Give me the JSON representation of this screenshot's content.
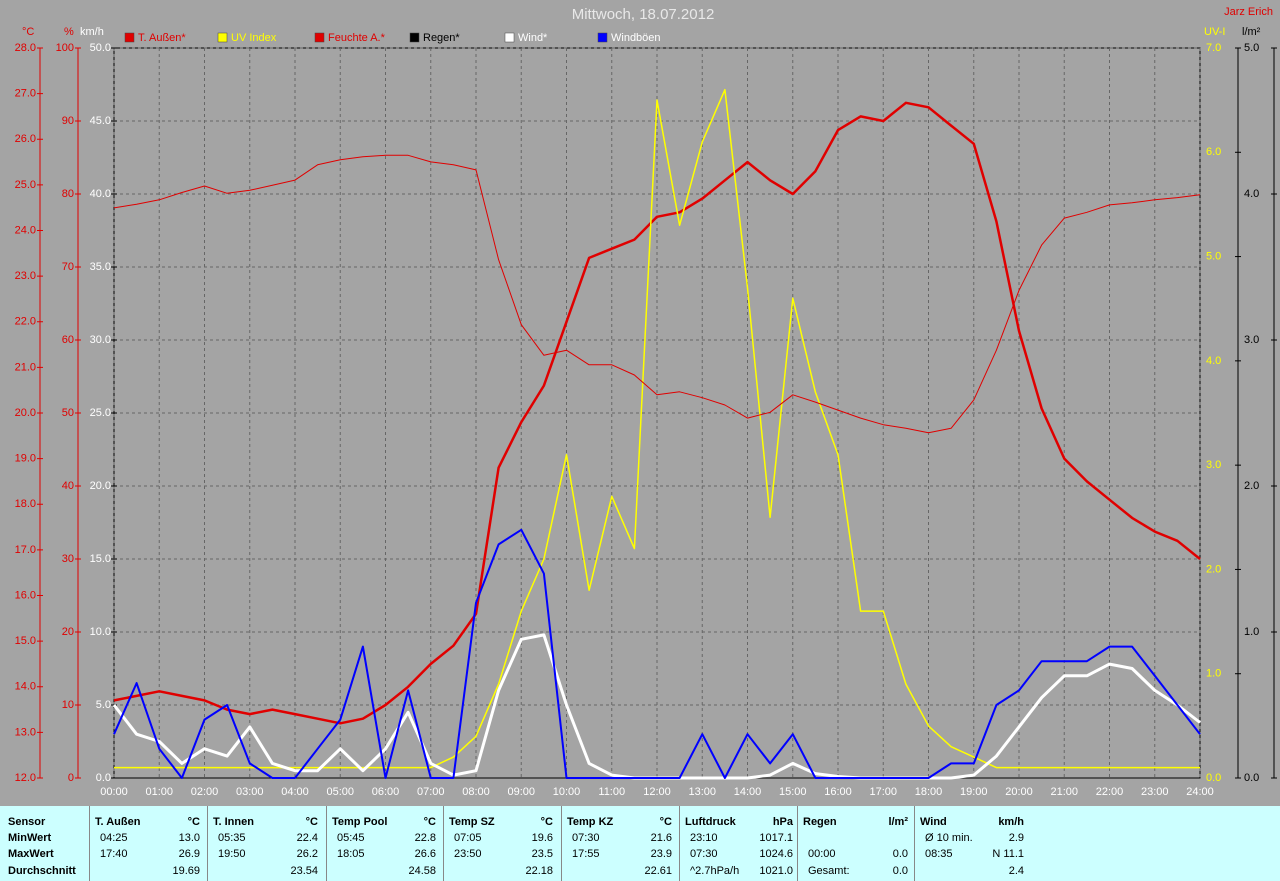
{
  "chart_data": {
    "type": "line",
    "title": "Mittwoch, 18.07.2012",
    "author": "Jarz Erich",
    "xlim": [
      0,
      24
    ],
    "xticks": [
      {
        "value": 0,
        "label": "00:00"
      },
      {
        "value": 1,
        "label": "01:00"
      },
      {
        "value": 2,
        "label": "02:00"
      },
      {
        "value": 3,
        "label": "03:00"
      },
      {
        "value": 4,
        "label": "04:00"
      },
      {
        "value": 5,
        "label": "05:00"
      },
      {
        "value": 6,
        "label": "06:00"
      },
      {
        "value": 7,
        "label": "07:00"
      },
      {
        "value": 8,
        "label": "08:00"
      },
      {
        "value": 9,
        "label": "09:00"
      },
      {
        "value": 10,
        "label": "10:00"
      },
      {
        "value": 11,
        "label": "11:00"
      },
      {
        "value": 12,
        "label": "12:00"
      },
      {
        "value": 13,
        "label": "13:00"
      },
      {
        "value": 14,
        "label": "14:00"
      },
      {
        "value": 15,
        "label": "15:00"
      },
      {
        "value": 16,
        "label": "16:00"
      },
      {
        "value": 17,
        "label": "17:00"
      },
      {
        "value": 18,
        "label": "18:00"
      },
      {
        "value": 19,
        "label": "19:00"
      },
      {
        "value": 20,
        "label": "20:00"
      },
      {
        "value": 21,
        "label": "21:00"
      },
      {
        "value": 22,
        "label": "22:00"
      },
      {
        "value": 23,
        "label": "23:00"
      },
      {
        "value": 24,
        "label": "24:00"
      }
    ],
    "y_axes": [
      {
        "unit": "°C",
        "color": "#e00000",
        "lim": [
          12,
          28
        ],
        "ticks": [
          {
            "value": 12,
            "label": "12.0"
          },
          {
            "value": 13,
            "label": "13.0"
          },
          {
            "value": 14,
            "label": "14.0"
          },
          {
            "value": 15,
            "label": "15.0"
          },
          {
            "value": 16,
            "label": "16.0"
          },
          {
            "value": 17,
            "label": "17.0"
          },
          {
            "value": 18,
            "label": "18.0"
          },
          {
            "value": 19,
            "label": "19.0"
          },
          {
            "value": 20,
            "label": "20.0"
          },
          {
            "value": 21,
            "label": "21.0"
          },
          {
            "value": 22,
            "label": "22.0"
          },
          {
            "value": 23,
            "label": "23.0"
          },
          {
            "value": 24,
            "label": "24.0"
          },
          {
            "value": 25,
            "label": "25.0"
          },
          {
            "value": 26,
            "label": "26.0"
          },
          {
            "value": 27,
            "label": "27.0"
          },
          {
            "value": 28,
            "label": "28.0"
          }
        ]
      },
      {
        "unit": "%",
        "color": "#e00000",
        "lim": [
          0,
          100
        ],
        "ticks": [
          0,
          10,
          20,
          30,
          40,
          50,
          60,
          70,
          80,
          90,
          100
        ]
      },
      {
        "unit": "km/h",
        "color": "#ffffff",
        "lim": [
          0,
          50
        ],
        "grid": true,
        "ticks": [
          {
            "value": 0,
            "label": "0.0"
          },
          {
            "value": 5,
            "label": "5.0"
          },
          {
            "value": 10,
            "label": "10.0"
          },
          {
            "value": 15,
            "label": "15.0"
          },
          {
            "value": 20,
            "label": "20.0"
          },
          {
            "value": 25,
            "label": "25.0"
          },
          {
            "value": 30,
            "label": "30.0"
          },
          {
            "value": 35,
            "label": "35.0"
          },
          {
            "value": 40,
            "label": "40.0"
          },
          {
            "value": 45,
            "label": "45.0"
          },
          {
            "value": 50,
            "label": "50.0"
          }
        ]
      },
      {
        "unit": "UV-I",
        "color": "#ffff00",
        "lim": [
          0,
          7
        ],
        "ticks": [
          {
            "value": 0,
            "label": "0.0"
          },
          {
            "value": 1,
            "label": "1.0"
          },
          {
            "value": 2,
            "label": "2.0"
          },
          {
            "value": 3,
            "label": "3.0"
          },
          {
            "value": 4,
            "label": "4.0"
          },
          {
            "value": 5,
            "label": "5.0"
          },
          {
            "value": 6,
            "label": "6.0"
          },
          {
            "value": 7,
            "label": "7.0"
          }
        ]
      },
      {
        "unit": "l/m²",
        "color": "#000000",
        "lim": [
          0,
          5
        ],
        "ticks": [
          {
            "value": 0,
            "label": "0.0"
          },
          {
            "value": 1,
            "label": "1.0"
          },
          {
            "value": 2,
            "label": "2.0"
          },
          {
            "value": 3,
            "label": "3.0"
          },
          {
            "value": 4,
            "label": "4.0"
          },
          {
            "value": 5,
            "label": "5.0"
          }
        ]
      }
    ],
    "x": [
      0,
      0.5,
      1,
      1.5,
      2,
      2.5,
      3,
      3.5,
      4,
      4.5,
      5,
      5.5,
      6,
      6.5,
      7,
      7.5,
      8,
      8.5,
      9,
      9.5,
      10,
      10.5,
      11,
      11.5,
      12,
      12.5,
      13,
      13.5,
      14,
      14.5,
      15,
      15.5,
      16,
      16.5,
      17,
      17.5,
      18,
      18.5,
      19,
      19.5,
      20,
      20.5,
      21,
      21.5,
      22,
      22.5,
      23,
      23.5,
      24
    ],
    "series": [
      {
        "name": "T. Außen*",
        "color": "#e00000",
        "axis": 0,
        "values": [
          13.7,
          13.8,
          13.9,
          13.8,
          13.7,
          13.5,
          13.4,
          13.5,
          13.4,
          13.3,
          13.2,
          13.3,
          13.6,
          14.0,
          14.5,
          14.9,
          15.6,
          18.8,
          19.8,
          20.6,
          22.0,
          23.4,
          23.6,
          23.8,
          24.3,
          24.4,
          24.7,
          25.1,
          25.5,
          25.1,
          24.8,
          25.3,
          26.2,
          26.5,
          26.4,
          26.8,
          26.7,
          26.3,
          25.9,
          24.2,
          21.8,
          20.1,
          19.0,
          18.5,
          18.1,
          17.7,
          17.4,
          17.2,
          16.8
        ]
      },
      {
        "name": "UV Index",
        "color": "#ffff00",
        "axis": 3,
        "values": [
          0.1,
          0.1,
          0.1,
          0.1,
          0.1,
          0.1,
          0.1,
          0.1,
          0.1,
          0.1,
          0.1,
          0.1,
          0.1,
          0.1,
          0.1,
          0.2,
          0.4,
          0.9,
          1.6,
          2.1,
          3.1,
          1.8,
          2.7,
          2.2,
          6.5,
          5.3,
          6.1,
          6.6,
          4.7,
          2.5,
          4.6,
          3.7,
          3.1,
          1.6,
          1.6,
          0.9,
          0.5,
          0.3,
          0.2,
          0.1,
          0.1,
          0.1,
          0.1,
          0.1,
          0.1,
          0.1,
          0.1,
          0.1,
          0.1
        ]
      },
      {
        "name": "Feuchte A.*",
        "color": "#e00000",
        "axis": 1,
        "values": [
          78.1,
          78.6,
          79.2,
          80.2,
          81.1,
          80.1,
          80.5,
          81.2,
          81.9,
          84.0,
          84.7,
          85.1,
          85.3,
          85.3,
          84.4,
          84.0,
          83.3,
          71.0,
          62.1,
          57.9,
          58.6,
          56.6,
          56.6,
          55.2,
          52.5,
          52.9,
          52.1,
          51.1,
          49.3,
          50.1,
          52.5,
          51.5,
          50.4,
          49.3,
          48.4,
          47.9,
          47.3,
          47.9,
          51.8,
          58.6,
          66.8,
          73.0,
          76.7,
          77.5,
          78.5,
          78.8,
          79.2,
          79.5,
          79.9
        ]
      },
      {
        "name": "Regen*",
        "color": "#000000",
        "axis": 4,
        "values": [
          0,
          0,
          0,
          0,
          0,
          0,
          0,
          0,
          0,
          0,
          0,
          0,
          0,
          0,
          0,
          0,
          0,
          0,
          0,
          0,
          0,
          0,
          0,
          0,
          0,
          0,
          0,
          0,
          0,
          0,
          0,
          0,
          0,
          0,
          0,
          0,
          0,
          0,
          0,
          0,
          0,
          0,
          0,
          0,
          0,
          0,
          0,
          0,
          0
        ]
      },
      {
        "name": "Wind*",
        "color": "#ffffff",
        "axis": 2,
        "values": [
          5,
          3,
          2.5,
          1,
          2,
          1.5,
          3.5,
          1,
          0.5,
          0.5,
          2,
          0.5,
          2,
          4.5,
          1,
          0.2,
          0.5,
          6,
          9.5,
          9.8,
          5,
          1,
          0.2,
          0,
          0,
          0,
          0,
          0,
          0,
          0.2,
          1,
          0.3,
          0.1,
          0,
          0,
          0,
          0,
          0,
          0.2,
          1.5,
          3.5,
          5.5,
          7,
          7,
          7.8,
          7.5,
          6,
          5,
          3.8
        ]
      },
      {
        "name": "Windböen",
        "color": "#0000ff",
        "axis": 2,
        "values": [
          3,
          6.5,
          2,
          0,
          4,
          5,
          1,
          0,
          0,
          2,
          4,
          9,
          0,
          6,
          0,
          0,
          12,
          16,
          17,
          14,
          0,
          0,
          0,
          0,
          0,
          0,
          3,
          0,
          3,
          1,
          3,
          0,
          0,
          0,
          0,
          0,
          0,
          1,
          1,
          5,
          6,
          8,
          8,
          8,
          9,
          9,
          7,
          5,
          3
        ]
      }
    ]
  },
  "stats": {
    "header": "Sensor",
    "row_labels": [
      "MinWert",
      "MaxWert",
      "Durchschnitt"
    ],
    "columns": [
      {
        "name": "T. Außen",
        "unit": "°C",
        "rows": [
          [
            "04:25",
            "13.0"
          ],
          [
            "17:40",
            "26.9"
          ],
          [
            "19.69"
          ]
        ]
      },
      {
        "name": "T. Innen",
        "unit": "°C",
        "rows": [
          [
            "05:35",
            "22.4"
          ],
          [
            "19:50",
            "26.2"
          ],
          [
            "23.54"
          ]
        ]
      },
      {
        "name": "Temp Pool",
        "unit": "°C",
        "rows": [
          [
            "05:45",
            "22.8"
          ],
          [
            "18:05",
            "26.6"
          ],
          [
            "24.58"
          ]
        ]
      },
      {
        "name": "Temp SZ",
        "unit": "°C",
        "rows": [
          [
            "07:05",
            "19.6"
          ],
          [
            "23:50",
            "23.5"
          ],
          [
            "22.18"
          ]
        ]
      },
      {
        "name": "Temp KZ",
        "unit": "°C",
        "rows": [
          [
            "07:30",
            "21.6"
          ],
          [
            "17:55",
            "23.9"
          ],
          [
            "22.61"
          ]
        ]
      },
      {
        "name": "Luftdruck",
        "unit": "hPa",
        "rows": [
          [
            "23:10",
            "1017.1"
          ],
          [
            "07:30",
            "1024.6"
          ],
          [
            "^2.7hPa/h",
            "1021.0"
          ]
        ]
      },
      {
        "name": "Regen",
        "unit": "l/m²",
        "rows": [
          [],
          [
            "00:00",
            "0.0"
          ],
          [
            "Gesamt:",
            "0.0"
          ]
        ]
      },
      {
        "name": "Wind",
        "unit": "km/h",
        "rows": [
          [
            "Ø 10 min.",
            "2.9"
          ],
          [
            "08:35",
            "N 11.1"
          ],
          [
            "2.4"
          ]
        ]
      }
    ]
  }
}
